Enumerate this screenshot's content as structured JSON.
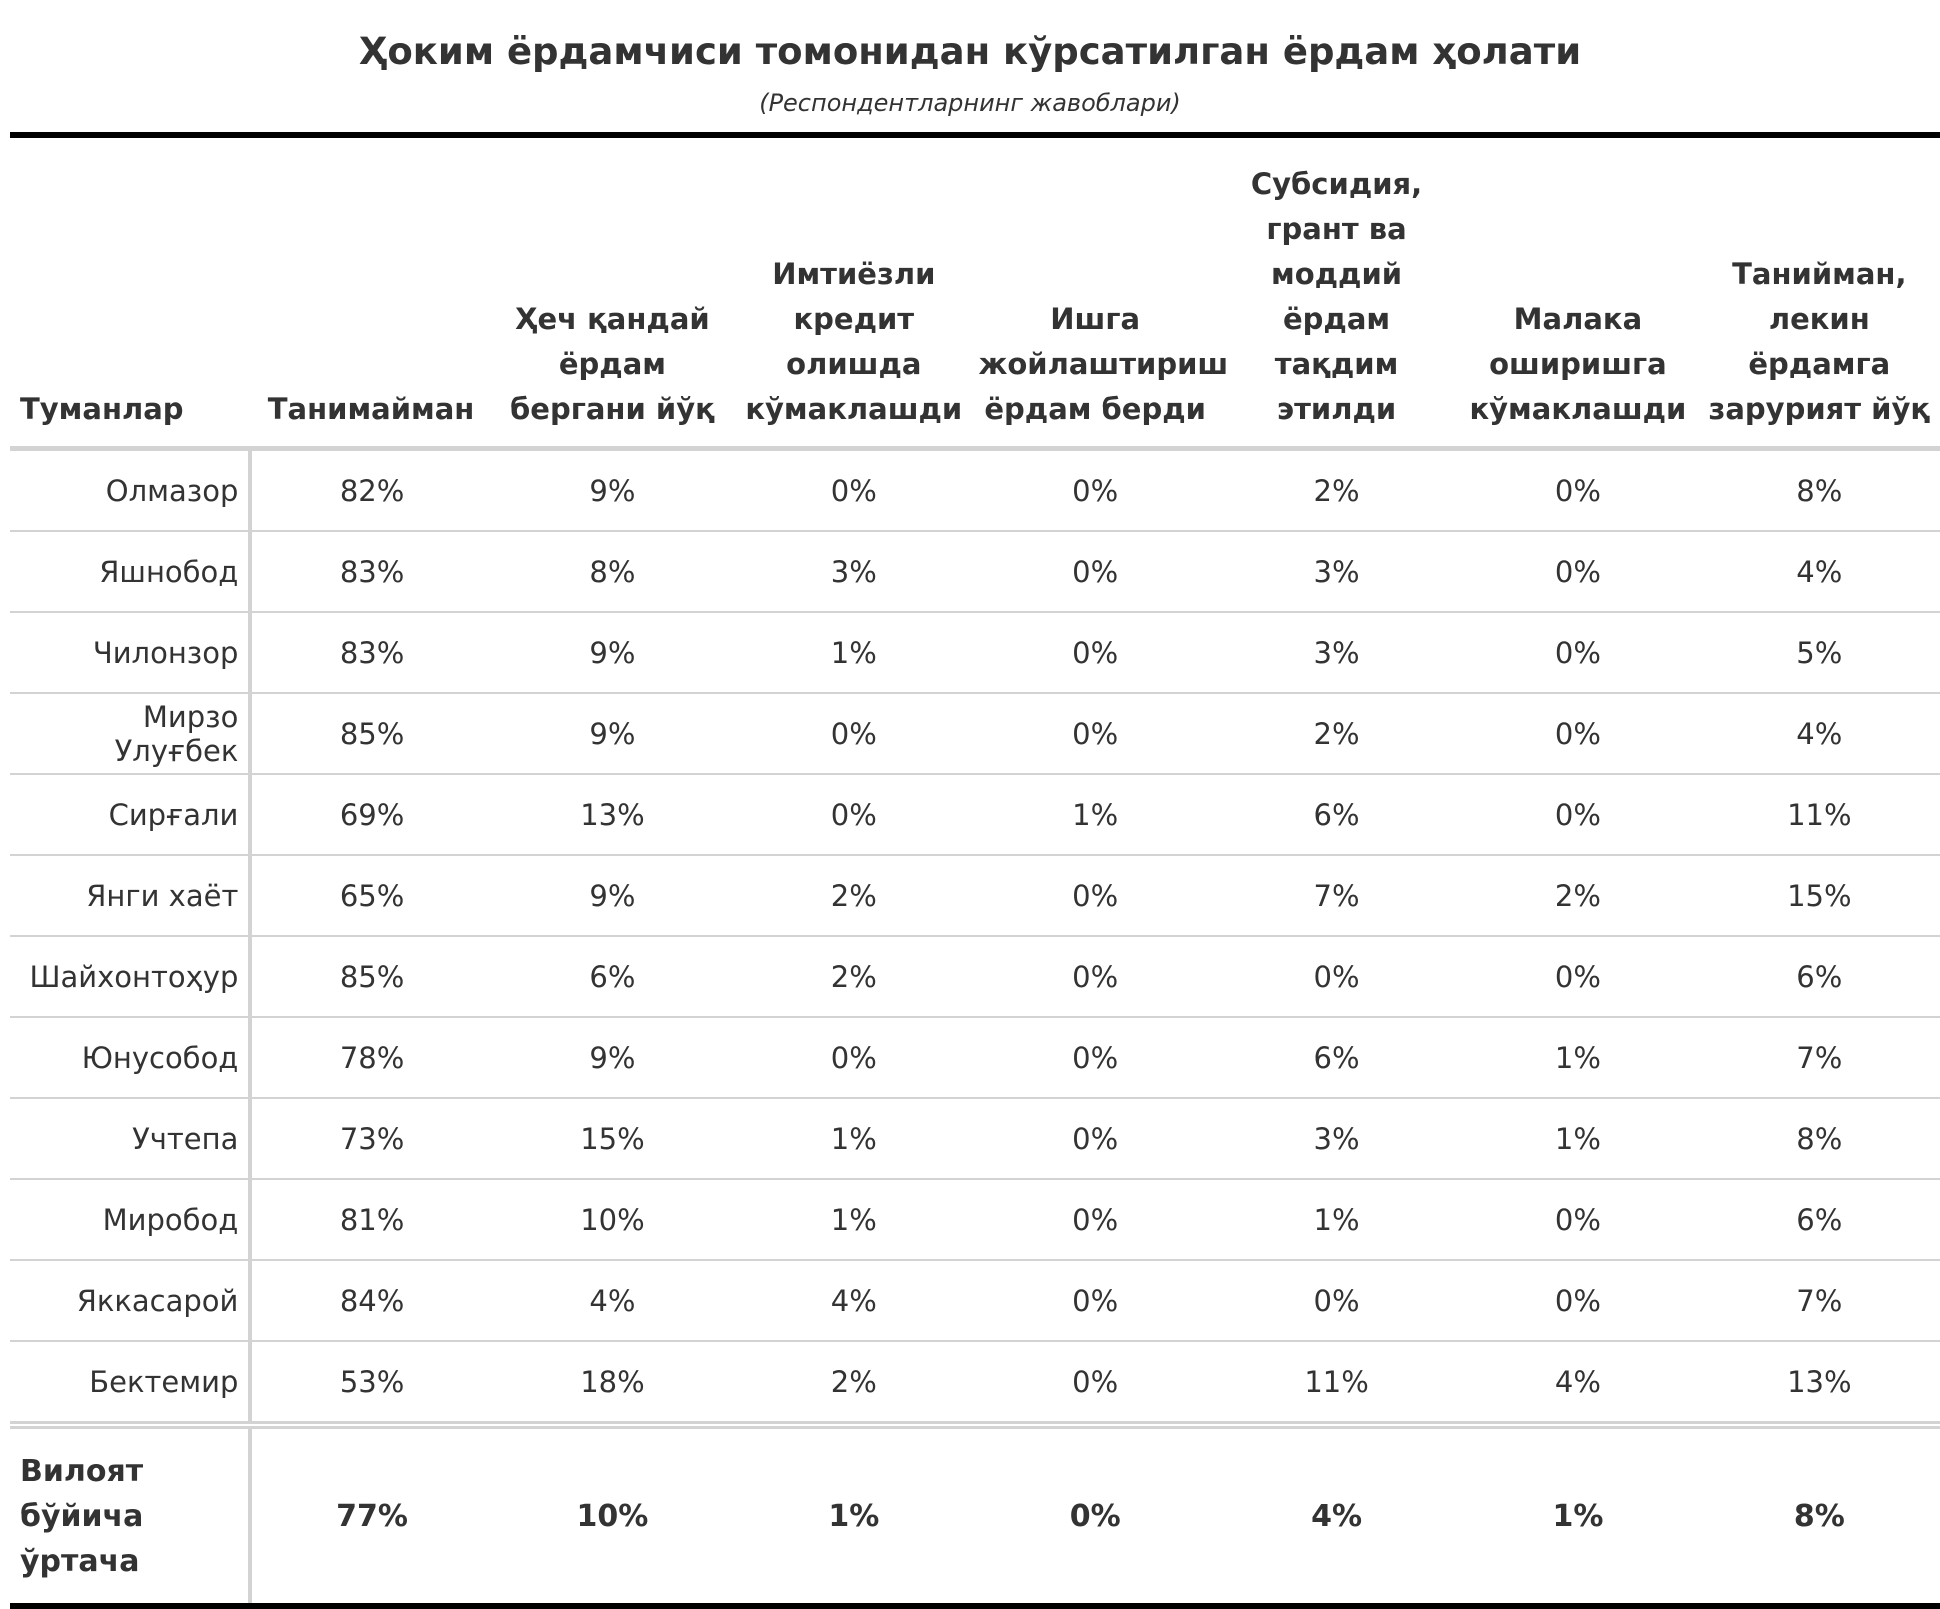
{
  "title": "Ҳоким ёрдамчиси томонидан кўрсатилган ёрдам ҳолати",
  "subtitle": "(Респондентларнинг жавоблари)",
  "chart_data": {
    "type": "table",
    "title": "Ҳоким ёрдамчиси томонидан кўрсатилган ёрдам ҳолати",
    "subtitle": "(Респондентларнинг жавоблари)",
    "columns": [
      "Туманлар",
      "Танимайман",
      "Ҳеч қандай ёрдам бергани йўқ",
      "Имтиёзли кредит олишда кўмаклашди",
      "Ишга жойлаштириш ёрдам берди",
      "Субсидия, грант ва моддий ёрдам тақдим этилди",
      "Малака оширишга кўмаклашди",
      "Танийман, лекин ёрдамга зарурият йўқ"
    ],
    "rows": [
      [
        "Олмазор",
        "82%",
        "9%",
        "0%",
        "0%",
        "2%",
        "0%",
        "8%"
      ],
      [
        "Яшнобод",
        "83%",
        "8%",
        "3%",
        "0%",
        "3%",
        "0%",
        "4%"
      ],
      [
        "Чилонзор",
        "83%",
        "9%",
        "1%",
        "0%",
        "3%",
        "0%",
        "5%"
      ],
      [
        "Мирзо Улуғбек",
        "85%",
        "9%",
        "0%",
        "0%",
        "2%",
        "0%",
        "4%"
      ],
      [
        "Сирғали",
        "69%",
        "13%",
        "0%",
        "1%",
        "6%",
        "0%",
        "11%"
      ],
      [
        "Янги хаёт",
        "65%",
        "9%",
        "2%",
        "0%",
        "7%",
        "2%",
        "15%"
      ],
      [
        "Шайхонтоҳур",
        "85%",
        "6%",
        "2%",
        "0%",
        "0%",
        "0%",
        "6%"
      ],
      [
        "Юнусобод",
        "78%",
        "9%",
        "0%",
        "0%",
        "6%",
        "1%",
        "7%"
      ],
      [
        "Учтепа",
        "73%",
        "15%",
        "1%",
        "0%",
        "3%",
        "1%",
        "8%"
      ],
      [
        "Миробод",
        "81%",
        "10%",
        "1%",
        "0%",
        "1%",
        "0%",
        "6%"
      ],
      [
        "Яккасарой",
        "84%",
        "4%",
        "4%",
        "0%",
        "0%",
        "0%",
        "7%"
      ],
      [
        "Бектемир",
        "53%",
        "18%",
        "2%",
        "0%",
        "11%",
        "4%",
        "13%"
      ]
    ],
    "total": [
      "Вилоят бўйича ўртача",
      "77%",
      "10%",
      "1%",
      "0%",
      "4%",
      "1%",
      "8%"
    ]
  },
  "colors": {
    "text": "#333333",
    "rule": "#000000",
    "gridline": "#d3d3d3",
    "background": "#ffffff"
  }
}
